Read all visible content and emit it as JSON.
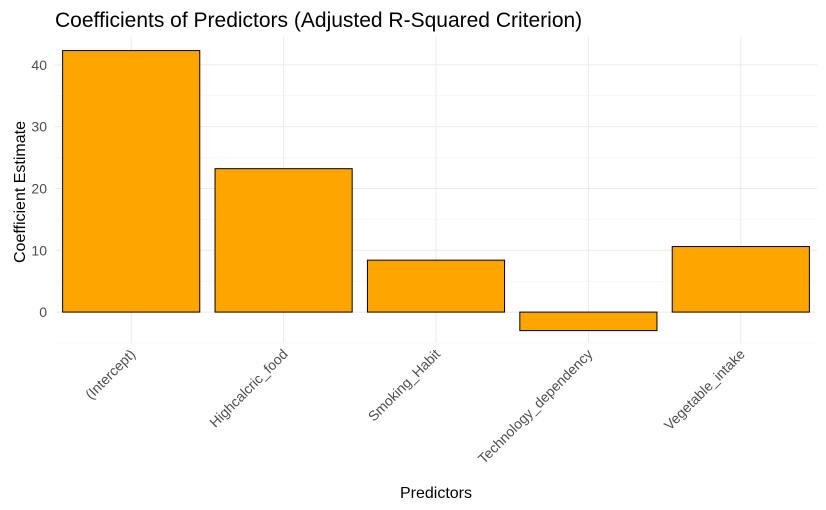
{
  "chart_data": {
    "type": "bar",
    "title": "Coefficients of Predictors (Adjusted R-Squared Criterion)",
    "xlabel": "Predictors",
    "ylabel": "Coefficient Estimate",
    "categories": [
      "(Intercept)",
      "Highcalcric_food",
      "Smoking_Habit",
      "Technology_dependency",
      "Vegetable_intake"
    ],
    "values": [
      42.3,
      23.2,
      8.4,
      -3.0,
      10.6
    ],
    "ylim": [
      -5,
      44.5
    ],
    "yticks": [
      0,
      10,
      20,
      30,
      40
    ],
    "grid": true,
    "bar_color": "#FFA500",
    "bar_border_color": "#000000"
  }
}
